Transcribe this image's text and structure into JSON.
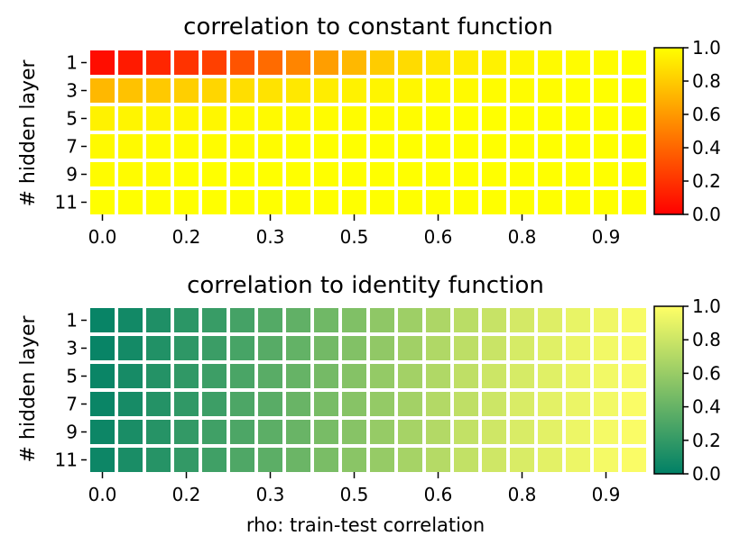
{
  "chart_data": [
    {
      "type": "heatmap",
      "title": "correlation to constant function",
      "ylabel": "# hidden layer",
      "xlabel": "",
      "y_tick_labels": [
        "1",
        "3",
        "5",
        "7",
        "9",
        "11"
      ],
      "x_tick_labels": [
        "0.0",
        "0.2",
        "0.3",
        "0.5",
        "0.6",
        "0.8",
        "0.9"
      ],
      "colorbar": {
        "min": 0.0,
        "max": 1.0,
        "ticks": [
          "0.0",
          "0.2",
          "0.4",
          "0.6",
          "0.8",
          "1.0"
        ]
      },
      "colormap": "autumn",
      "rows": 6,
      "cols": 20,
      "values": [
        [
          0.05,
          0.1,
          0.15,
          0.2,
          0.25,
          0.33,
          0.42,
          0.52,
          0.62,
          0.72,
          0.8,
          0.86,
          0.9,
          0.93,
          0.95,
          0.97,
          0.98,
          0.99,
          0.99,
          1.0
        ],
        [
          0.72,
          0.76,
          0.79,
          0.81,
          0.84,
          0.87,
          0.89,
          0.91,
          0.93,
          0.95,
          0.96,
          0.97,
          0.98,
          0.98,
          0.99,
          0.99,
          0.99,
          1.0,
          1.0,
          1.0
        ],
        [
          0.95,
          0.96,
          0.96,
          0.97,
          0.97,
          0.98,
          0.98,
          0.98,
          0.99,
          0.99,
          0.99,
          0.99,
          1.0,
          1.0,
          1.0,
          1.0,
          1.0,
          1.0,
          1.0,
          1.0
        ],
        [
          0.98,
          0.98,
          0.99,
          0.99,
          0.99,
          0.99,
          0.99,
          1.0,
          1.0,
          1.0,
          1.0,
          1.0,
          1.0,
          1.0,
          1.0,
          1.0,
          1.0,
          1.0,
          1.0,
          1.0
        ],
        [
          0.99,
          0.99,
          0.99,
          1.0,
          1.0,
          1.0,
          1.0,
          1.0,
          1.0,
          1.0,
          1.0,
          1.0,
          1.0,
          1.0,
          1.0,
          1.0,
          1.0,
          1.0,
          1.0,
          1.0
        ],
        [
          1.0,
          1.0,
          1.0,
          1.0,
          1.0,
          1.0,
          1.0,
          1.0,
          1.0,
          1.0,
          1.0,
          1.0,
          1.0,
          1.0,
          1.0,
          1.0,
          1.0,
          1.0,
          1.0,
          1.0
        ]
      ]
    },
    {
      "type": "heatmap",
      "title": "correlation to identity function",
      "ylabel": "# hidden layer",
      "xlabel": "rho: train-test correlation",
      "y_tick_labels": [
        "1",
        "3",
        "5",
        "7",
        "9",
        "11"
      ],
      "x_tick_labels": [
        "0.0",
        "0.2",
        "0.3",
        "0.5",
        "0.6",
        "0.8",
        "0.9"
      ],
      "colorbar": {
        "min": 0.0,
        "max": 1.0,
        "ticks": [
          "0.0",
          "0.2",
          "0.4",
          "0.6",
          "0.8",
          "1.0"
        ]
      },
      "colormap": "summer",
      "rows": 6,
      "cols": 20,
      "values": [
        [
          0.03,
          0.07,
          0.12,
          0.17,
          0.22,
          0.27,
          0.33,
          0.38,
          0.44,
          0.5,
          0.56,
          0.62,
          0.68,
          0.73,
          0.78,
          0.83,
          0.87,
          0.91,
          0.94,
          0.97
        ],
        [
          0.03,
          0.08,
          0.13,
          0.18,
          0.23,
          0.28,
          0.34,
          0.39,
          0.45,
          0.51,
          0.57,
          0.63,
          0.69,
          0.74,
          0.79,
          0.84,
          0.88,
          0.92,
          0.95,
          0.97
        ],
        [
          0.04,
          0.09,
          0.14,
          0.19,
          0.24,
          0.29,
          0.35,
          0.4,
          0.46,
          0.52,
          0.58,
          0.64,
          0.69,
          0.75,
          0.8,
          0.84,
          0.88,
          0.92,
          0.95,
          0.97
        ],
        [
          0.04,
          0.09,
          0.14,
          0.19,
          0.24,
          0.3,
          0.35,
          0.41,
          0.47,
          0.53,
          0.58,
          0.64,
          0.7,
          0.75,
          0.8,
          0.85,
          0.89,
          0.92,
          0.95,
          0.98
        ],
        [
          0.05,
          0.1,
          0.15,
          0.2,
          0.25,
          0.3,
          0.36,
          0.41,
          0.47,
          0.53,
          0.59,
          0.65,
          0.7,
          0.76,
          0.81,
          0.85,
          0.89,
          0.93,
          0.96,
          0.98
        ],
        [
          0.05,
          0.1,
          0.15,
          0.2,
          0.25,
          0.31,
          0.36,
          0.42,
          0.48,
          0.54,
          0.59,
          0.65,
          0.71,
          0.76,
          0.81,
          0.85,
          0.89,
          0.93,
          0.96,
          0.98
        ]
      ]
    }
  ]
}
